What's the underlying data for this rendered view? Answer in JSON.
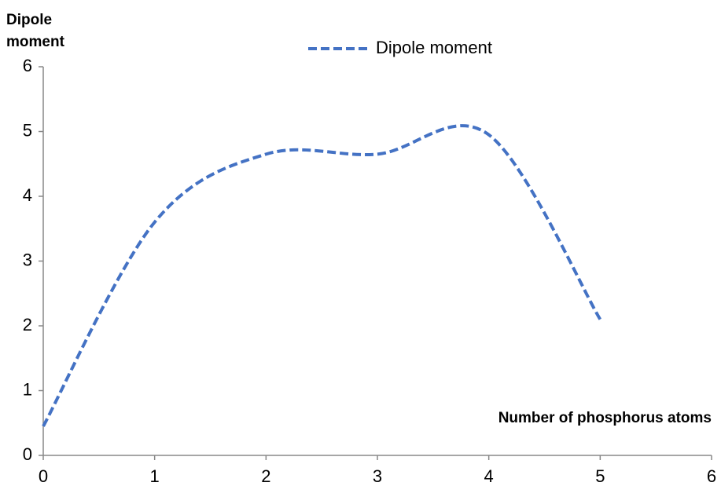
{
  "chart_data": {
    "type": "line",
    "ylabel": "Dipole moment",
    "xlabel": "Number of phosphorus atoms",
    "x": [
      0,
      1,
      2,
      3,
      4,
      5
    ],
    "series": [
      {
        "name": "Dipole moment",
        "color": "#4472c4",
        "values": [
          0.45,
          3.6,
          4.65,
          4.65,
          4.95,
          2.1
        ]
      }
    ],
    "xlim": [
      0,
      6
    ],
    "xticks": [
      0,
      1,
      2,
      3,
      4,
      5,
      6
    ],
    "ylim": [
      0,
      6
    ],
    "yticks": [
      0,
      1,
      2,
      3,
      4,
      5,
      6
    ],
    "smooth": true,
    "dashed": true,
    "grid": false,
    "legend": "top"
  }
}
